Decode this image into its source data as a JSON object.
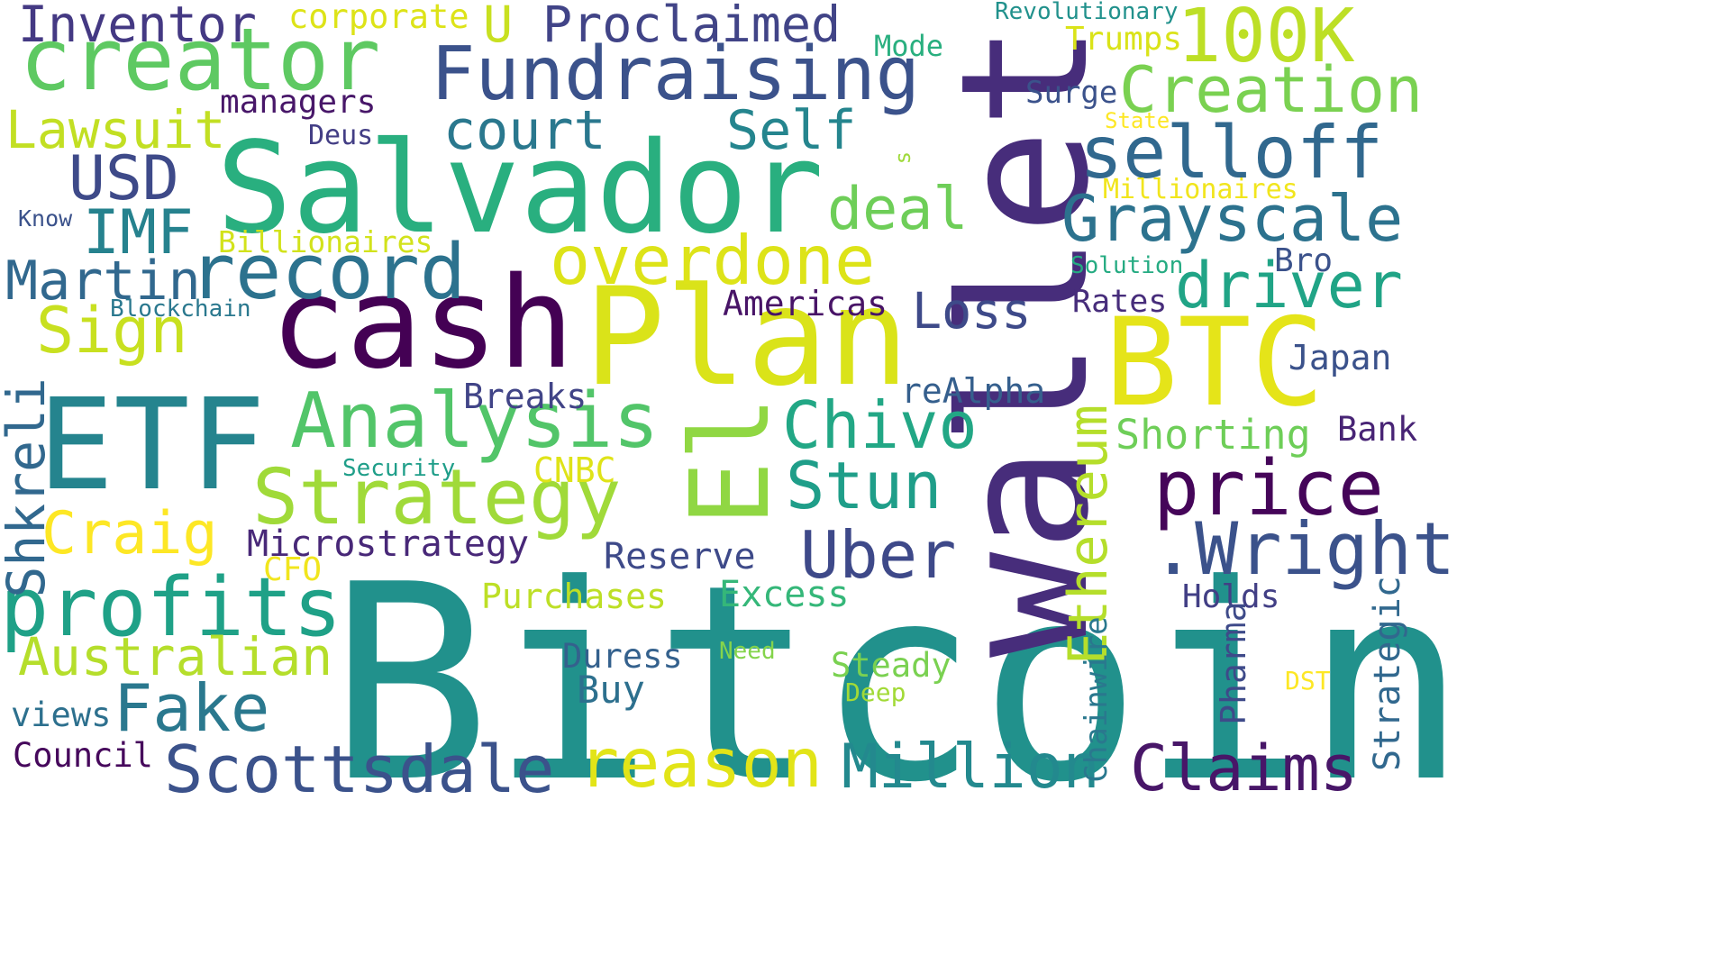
{
  "word_cloud": {
    "background_color": "#ffffff",
    "words": [
      {
        "id": "bitcoin",
        "text": "Bitcoin",
        "color": "#21918c"
      },
      {
        "id": "wallet",
        "text": "wallet",
        "color": "#472d7b"
      },
      {
        "id": "salvador",
        "text": "Salvador",
        "color": "#29af7f"
      },
      {
        "id": "plan",
        "text": "Plan",
        "color": "#dae319"
      },
      {
        "id": "cash",
        "text": "cash",
        "color": "#440154"
      },
      {
        "id": "btc",
        "text": "BTC",
        "color": "#e5e419"
      },
      {
        "id": "etf",
        "text": "ETF",
        "color": "#25848e"
      },
      {
        "id": "el",
        "text": "El",
        "color": "#90d743"
      },
      {
        "id": "creator",
        "text": "creator",
        "color": "#5ec962"
      },
      {
        "id": "fundraising",
        "text": "Fundraising",
        "color": "#3b528b"
      },
      {
        "id": "100k",
        "text": "100K",
        "color": "#bddf26"
      },
      {
        "id": "creation",
        "text": "Creation",
        "color": "#7ad151"
      },
      {
        "id": "selloff",
        "text": "selloff",
        "color": "#31688e"
      },
      {
        "id": "grayscale",
        "text": "Grayscale",
        "color": "#2c728e"
      },
      {
        "id": "driver",
        "text": "driver",
        "color": "#20a486"
      },
      {
        "id": "overdone",
        "text": "overdone",
        "color": "#dde318"
      },
      {
        "id": "record",
        "text": "record",
        "color": "#2c728e"
      },
      {
        "id": "analysis",
        "text": "Analysis",
        "color": "#52c569"
      },
      {
        "id": "strategy",
        "text": "Strategy",
        "color": "#a0da39"
      },
      {
        "id": "price",
        "text": "price",
        "color": "#450559"
      },
      {
        "id": "wright",
        "text": ".Wright",
        "color": "#3b528b"
      },
      {
        "id": "profits",
        "text": "profits",
        "color": "#1fa187"
      },
      {
        "id": "scottsdale",
        "text": "Scottsdale",
        "color": "#3b528b"
      },
      {
        "id": "reason",
        "text": "reason",
        "color": "#e2e418"
      },
      {
        "id": "million",
        "text": "Million",
        "color": "#23898e"
      },
      {
        "id": "claims",
        "text": "Claims",
        "color": "#481668"
      },
      {
        "id": "fake",
        "text": "Fake",
        "color": "#2a788e"
      },
      {
        "id": "uber",
        "text": "Uber",
        "color": "#3e4989"
      },
      {
        "id": "chivo",
        "text": "Chivo",
        "color": "#22a785"
      },
      {
        "id": "stun",
        "text": "Stun",
        "color": "#1f9e89"
      },
      {
        "id": "ethereum",
        "text": "Ethereum",
        "color": "#b5de2b"
      },
      {
        "id": "australian",
        "text": "Australian",
        "color": "#b5de2b"
      },
      {
        "id": "craig",
        "text": "Craig",
        "color": "#fde725"
      },
      {
        "id": "sign",
        "text": "Sign",
        "color": "#c8e020"
      },
      {
        "id": "martin",
        "text": "Martin",
        "color": "#31688e"
      },
      {
        "id": "imf",
        "text": "IMF",
        "color": "#26828e"
      },
      {
        "id": "usd",
        "text": "USD",
        "color": "#3e4a89"
      },
      {
        "id": "lawsuit",
        "text": "Lawsuit",
        "color": "#c2df23"
      },
      {
        "id": "inventor",
        "text": "Inventor",
        "color": "#443983"
      },
      {
        "id": "court",
        "text": "court",
        "color": "#2a788e"
      },
      {
        "id": "self",
        "text": "Self",
        "color": "#25858e"
      },
      {
        "id": "deal",
        "text": "deal",
        "color": "#6ece58"
      },
      {
        "id": "proclaimed",
        "text": "Proclaimed",
        "color": "#414487"
      },
      {
        "id": "u",
        "text": "U",
        "color": "#c8e020"
      },
      {
        "id": "corporate",
        "text": "corporate",
        "color": "#dde318"
      },
      {
        "id": "managers",
        "text": "managers",
        "color": "#481769"
      },
      {
        "id": "deus",
        "text": "Deus",
        "color": "#433e85"
      },
      {
        "id": "s",
        "text": "s",
        "color": "#9fda3a"
      },
      {
        "id": "loss",
        "text": "Loss",
        "color": "#3e4a89"
      },
      {
        "id": "americas",
        "text": "Americas",
        "color": "#481467"
      },
      {
        "id": "breaks",
        "text": "Breaks",
        "color": "#414487"
      },
      {
        "id": "realpha",
        "text": "reAlpha",
        "color": "#355f8d"
      },
      {
        "id": "shorting",
        "text": "Shorting",
        "color": "#6ece58"
      },
      {
        "id": "japan",
        "text": "Japan",
        "color": "#3b528b"
      },
      {
        "id": "bank",
        "text": "Bank",
        "color": "#482475"
      },
      {
        "id": "shkreli",
        "text": "Shkreli",
        "color": "#31688e"
      },
      {
        "id": "microstrategy",
        "text": "Microstrategy",
        "color": "#482878"
      },
      {
        "id": "reserve",
        "text": "Reserve",
        "color": "#3e4a89"
      },
      {
        "id": "cnbc",
        "text": "CNBC",
        "color": "#dfe318"
      },
      {
        "id": "cfo",
        "text": "CFO",
        "color": "#f1e51d"
      },
      {
        "id": "purchases",
        "text": "Purchases",
        "color": "#bddf26"
      },
      {
        "id": "excess",
        "text": "Excess",
        "color": "#35b779"
      },
      {
        "id": "duress",
        "text": "Duress",
        "color": "#34618d"
      },
      {
        "id": "buy",
        "text": "Buy",
        "color": "#2d708e"
      },
      {
        "id": "need",
        "text": "Need",
        "color": "#84d44b"
      },
      {
        "id": "steady",
        "text": "Steady",
        "color": "#7ad151"
      },
      {
        "id": "deep",
        "text": "Deep",
        "color": "#a2da37"
      },
      {
        "id": "holds",
        "text": "Holds",
        "color": "#423f85"
      },
      {
        "id": "pharma",
        "text": "Pharma",
        "color": "#3e4a89"
      },
      {
        "id": "strategic",
        "text": "Strategic",
        "color": "#31688e"
      },
      {
        "id": "chainwire",
        "text": "Chainwire",
        "color": "#2a788e"
      },
      {
        "id": "dst",
        "text": "DST",
        "color": "#fde725"
      },
      {
        "id": "security",
        "text": "Security",
        "color": "#1f9e89"
      },
      {
        "id": "views",
        "text": "views",
        "color": "#2d708e"
      },
      {
        "id": "council",
        "text": "Council",
        "color": "#46085c"
      },
      {
        "id": "blockchain",
        "text": "Blockchain",
        "color": "#2a788e"
      },
      {
        "id": "billionaires",
        "text": "Billionaires",
        "color": "#d2e21b"
      },
      {
        "id": "know",
        "text": "Know",
        "color": "#3b528b"
      },
      {
        "id": "revolutionary",
        "text": "Revolutionary",
        "color": "#21918c"
      },
      {
        "id": "mode",
        "text": "Mode",
        "color": "#29af7f"
      },
      {
        "id": "trumps",
        "text": "Trumps",
        "color": "#dae319"
      },
      {
        "id": "surge",
        "text": "Surge",
        "color": "#3b528b"
      },
      {
        "id": "state",
        "text": "State",
        "color": "#fde725"
      },
      {
        "id": "millionaires",
        "text": "Millionaires",
        "color": "#f1e51d"
      },
      {
        "id": "solution",
        "text": "Solution",
        "color": "#25ab82"
      },
      {
        "id": "bro",
        "text": "Bro",
        "color": "#3b528b"
      },
      {
        "id": "rates",
        "text": "Rates",
        "color": "#472d7b"
      }
    ]
  }
}
